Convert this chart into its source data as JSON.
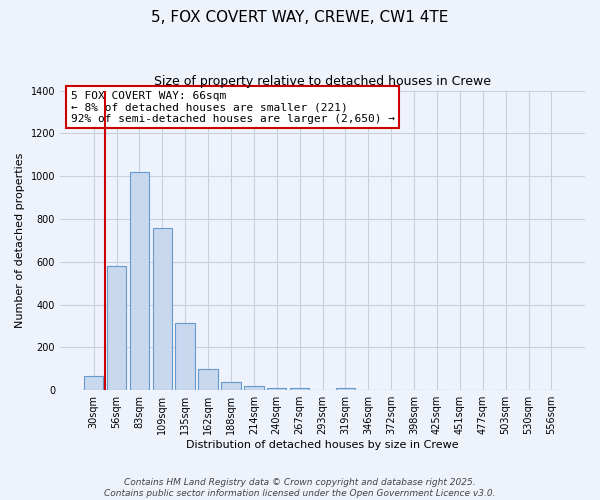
{
  "title": "5, FOX COVERT WAY, CREWE, CW1 4TE",
  "subtitle": "Size of property relative to detached houses in Crewe",
  "xlabel": "Distribution of detached houses by size in Crewe",
  "ylabel": "Number of detached properties",
  "bar_labels": [
    "30sqm",
    "56sqm",
    "83sqm",
    "109sqm",
    "135sqm",
    "162sqm",
    "188sqm",
    "214sqm",
    "240sqm",
    "267sqm",
    "293sqm",
    "319sqm",
    "346sqm",
    "372sqm",
    "398sqm",
    "425sqm",
    "451sqm",
    "477sqm",
    "503sqm",
    "530sqm",
    "556sqm"
  ],
  "bar_values": [
    65,
    580,
    1020,
    760,
    315,
    100,
    38,
    20,
    10,
    8,
    0,
    8,
    0,
    0,
    0,
    0,
    0,
    0,
    0,
    0,
    0
  ],
  "bar_color": "#c8d8ee",
  "bar_edge_color": "#6699cc",
  "vline_x": 0.5,
  "vline_color": "#cc0000",
  "annotation_text": "5 FOX COVERT WAY: 66sqm\n← 8% of detached houses are smaller (221)\n92% of semi-detached houses are larger (2,650) →",
  "box_color": "#ffffff",
  "box_edge_color": "#cc0000",
  "ylim": [
    0,
    1400
  ],
  "yticks": [
    0,
    200,
    400,
    600,
    800,
    1000,
    1200,
    1400
  ],
  "background_color": "#eef2fb",
  "grid_color": "#c8d0e0",
  "footer_line1": "Contains HM Land Registry data © Crown copyright and database right 2025.",
  "footer_line2": "Contains public sector information licensed under the Open Government Licence v3.0.",
  "title_fontsize": 11,
  "subtitle_fontsize": 9,
  "axis_label_fontsize": 8,
  "tick_fontsize": 7,
  "annotation_fontsize": 8,
  "footer_fontsize": 6.5
}
